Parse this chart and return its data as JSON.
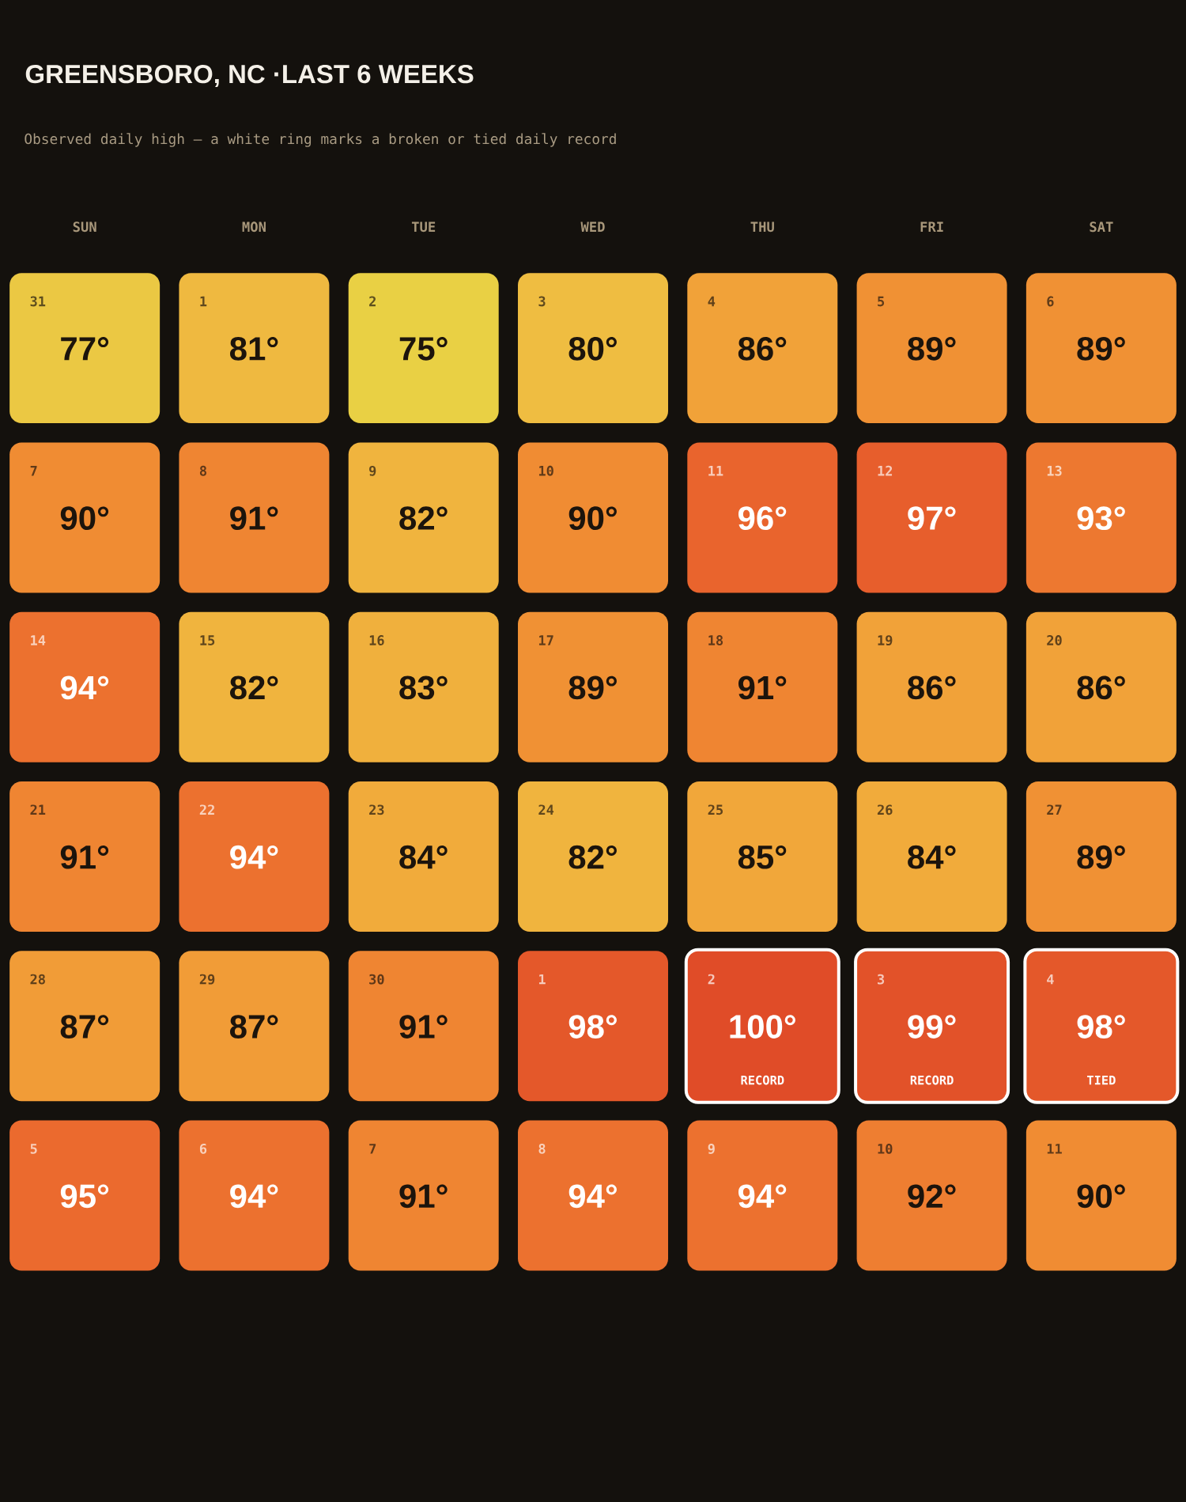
{
  "chart_data": {
    "type": "heatmap",
    "title": "GREENSBORO, NC ·LAST 6 WEEKS",
    "subtitle": "Observed daily high — a white ring marks a broken or tied daily record",
    "categories": [
      "SUN",
      "MON",
      "TUE",
      "WED",
      "THU",
      "FRI",
      "SAT"
    ],
    "y_categories": [
      null,
      null,
      null,
      null,
      null,
      null
    ],
    "cells": [
      [
        77,
        81,
        75,
        80,
        86,
        89,
        89
      ],
      [
        90,
        91,
        82,
        90,
        96,
        97,
        93
      ],
      [
        94,
        82,
        83,
        89,
        91,
        86,
        86
      ],
      [
        91,
        94,
        84,
        82,
        85,
        84,
        89
      ],
      [
        87,
        87,
        91,
        98,
        100,
        99,
        98
      ],
      [
        95,
        94,
        91,
        94,
        94,
        92,
        90
      ]
    ],
    "cell_labels": [
      [
        "77°",
        "81°",
        "75°",
        "80°",
        "86°",
        "89°",
        "89°"
      ],
      [
        "90°",
        "91°",
        "82°",
        "90°",
        "96°",
        "97°",
        "93°"
      ],
      [
        "94°",
        "82°",
        "83°",
        "89°",
        "91°",
        "86°",
        "86°"
      ],
      [
        "91°",
        "94°",
        "84°",
        "82°",
        "85°",
        "84°",
        "89°"
      ],
      [
        "87°",
        "87°",
        "91°",
        "98°",
        "100°",
        "99°",
        "98°"
      ],
      [
        "95°",
        "94°",
        "91°",
        "94°",
        "94°",
        "92°",
        "90°"
      ]
    ],
    "annotations": [
      [
        [
          "31"
        ],
        [
          "1"
        ],
        [
          "2"
        ],
        [
          "3"
        ],
        [
          "4"
        ],
        [
          "5"
        ],
        [
          "6"
        ]
      ],
      [
        [
          "7"
        ],
        [
          "8"
        ],
        [
          "9"
        ],
        [
          "10"
        ],
        [
          "11"
        ],
        [
          "12"
        ],
        [
          "13"
        ]
      ],
      [
        [
          "14"
        ],
        [
          "15"
        ],
        [
          "16"
        ],
        [
          "17"
        ],
        [
          "18"
        ],
        [
          "19"
        ],
        [
          "20"
        ]
      ],
      [
        [
          "21"
        ],
        [
          "22"
        ],
        [
          "23"
        ],
        [
          "24"
        ],
        [
          "25"
        ],
        [
          "26"
        ],
        [
          "27"
        ]
      ],
      [
        [
          "28"
        ],
        [
          "29"
        ],
        [
          "30"
        ],
        [
          "1"
        ],
        [
          "2",
          "RECORD"
        ],
        [
          "3",
          "RECORD"
        ],
        [
          "4",
          "TIED"
        ]
      ],
      [
        [
          "5"
        ],
        [
          "6"
        ],
        [
          "7"
        ],
        [
          "8"
        ],
        [
          "9"
        ],
        [
          "10"
        ],
        [
          "11"
        ]
      ]
    ]
  }
}
